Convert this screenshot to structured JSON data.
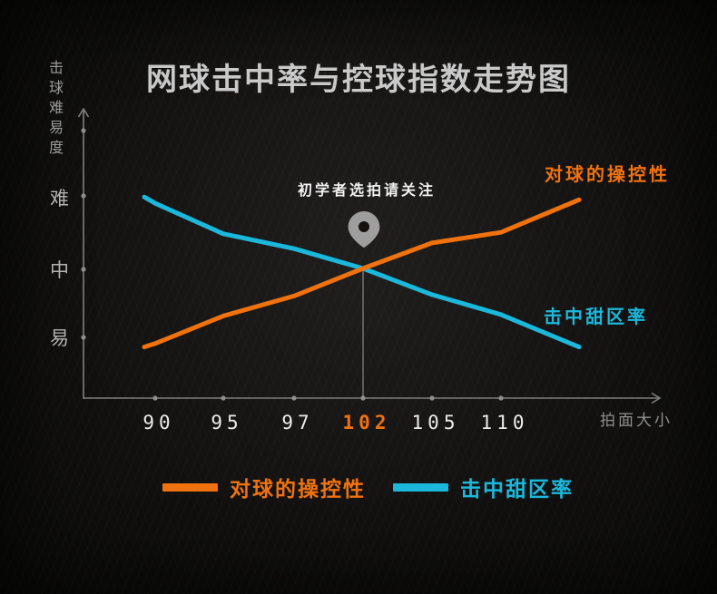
{
  "title": "网球击中率与控球指数走势图",
  "colors": {
    "orange": "#F0720E",
    "cyan": "#1CB8DC",
    "axis": "#7f7f7f",
    "pin": "#9e9e9e",
    "background": "#11100f",
    "title_text": "#c9c9c9",
    "tick_text": "#ececec"
  },
  "icons": {
    "annotation_pin": "location-pin-icon",
    "y_axis_arrow": "arrow-up-icon",
    "x_axis_arrow": "arrow-right-icon"
  },
  "y_axis": {
    "title": "击球难易度",
    "tick_labels": [
      "难",
      "中",
      "易"
    ]
  },
  "x_axis": {
    "title": "拍面大小",
    "tick_labels": [
      "90",
      "95",
      "97",
      "102",
      "105",
      "110"
    ],
    "highlighted_tick": "102"
  },
  "annotation": {
    "text": "初学者选拍请关注"
  },
  "series_labels": {
    "control": "对球的操控性",
    "sweet_spot": "击中甜区率"
  },
  "legend": [
    {
      "label": "对球的操控性",
      "color_key": "orange"
    },
    {
      "label": "击中甜区率",
      "color_key": "cyan"
    }
  ],
  "chart_data": {
    "type": "line",
    "title": "网球击中率与控球指数走势图",
    "xlabel": "拍面大小",
    "ylabel": "击球难易度",
    "x_categories": [
      "90",
      "95",
      "97",
      "102",
      "105",
      "110"
    ],
    "y_tick_labels": [
      "难",
      "中",
      "易"
    ],
    "value_scale": {
      "易": 1,
      "中": 2,
      "难": 3
    },
    "x_points": [
      "",
      "90",
      "95",
      "97",
      "102",
      "105",
      "110",
      ""
    ],
    "series": [
      {
        "name": "对球的操控性",
        "color": "#F0720E",
        "values": [
          0.86,
          0.91,
          1.31,
          1.6,
          2.0,
          2.36,
          2.51,
          2.97
        ]
      },
      {
        "name": "击中甜区率",
        "color": "#1CB8DC",
        "values": [
          3.01,
          2.92,
          2.49,
          2.28,
          2.0,
          1.62,
          1.33,
          0.86
        ]
      }
    ],
    "crossing": {
      "x": "102",
      "value": 2.0,
      "annotation": "初学者选拍请关注"
    },
    "legend_position": "bottom",
    "grid": false
  }
}
